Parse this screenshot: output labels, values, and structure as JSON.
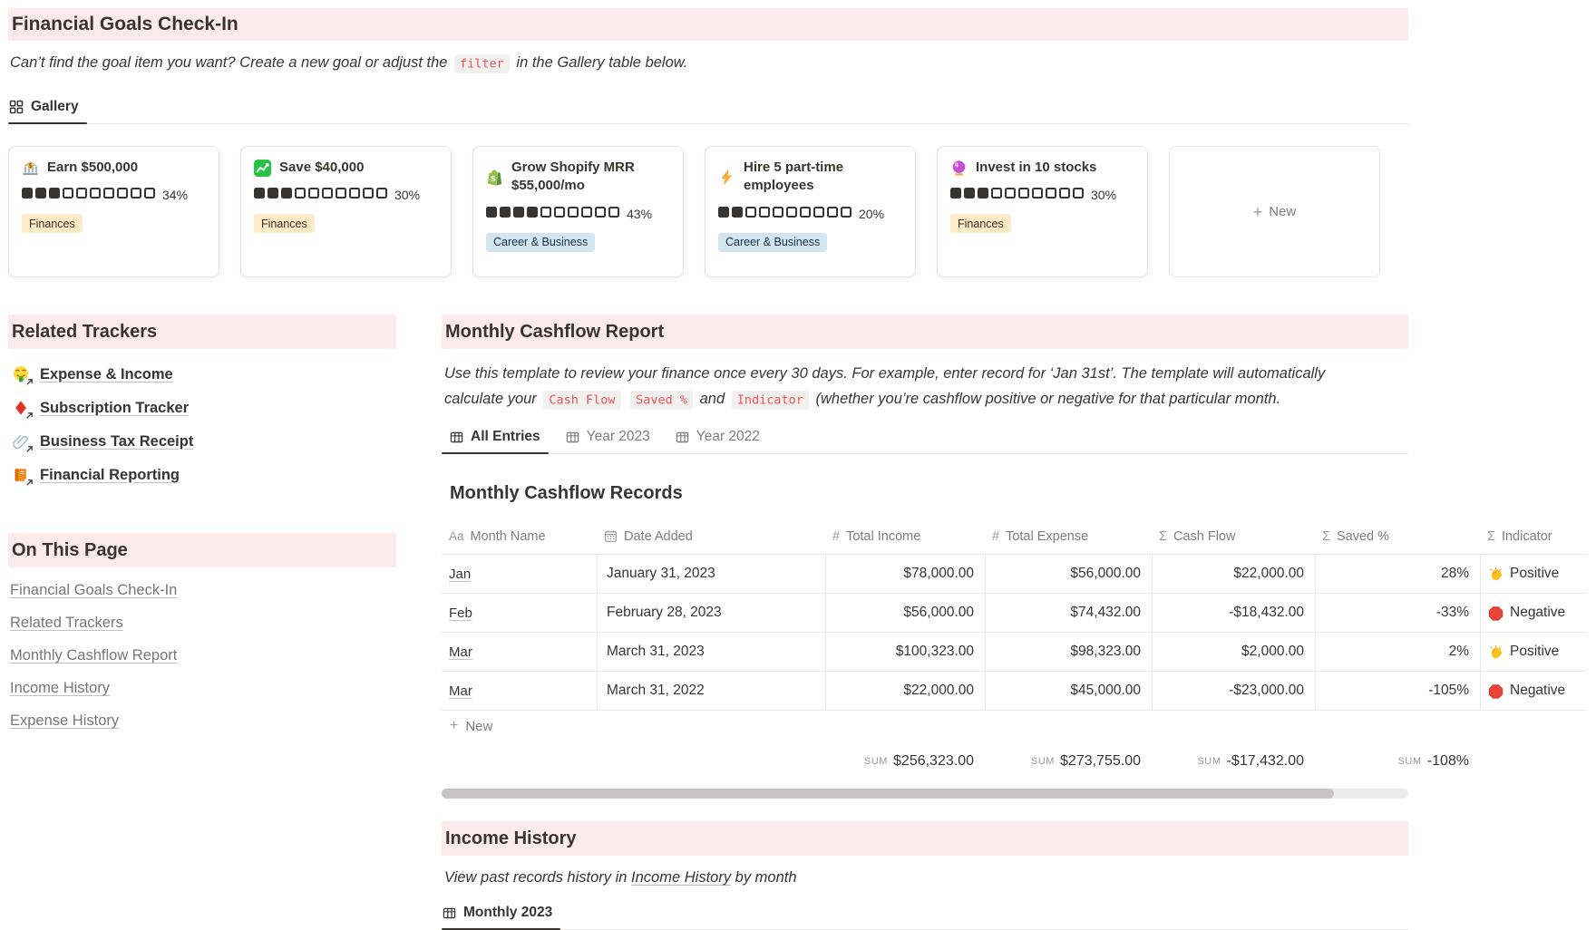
{
  "header": {
    "title": "Financial Goals Check-In",
    "note_before": "Can’t find the goal item you want? Create a new goal or adjust the ",
    "note_code": "filter",
    "note_after": " in the Gallery table below.",
    "gallery_tab": "Gallery",
    "new_card_label": "New"
  },
  "goal_cards": [
    {
      "icon": "bank",
      "title": "Earn $500,000",
      "progress_filled": 3,
      "progress_total": 10,
      "percent": "34%",
      "tag": "Finances",
      "tag_color": "yellow"
    },
    {
      "icon": "chart-up",
      "title": "Save $40,000",
      "progress_filled": 3,
      "progress_total": 10,
      "percent": "30%",
      "tag": "Finances",
      "tag_color": "yellow"
    },
    {
      "icon": "shopify",
      "title": "Grow Shopify MRR $55,000/mo",
      "progress_filled": 4,
      "progress_total": 10,
      "percent": "43%",
      "tag": "Career & Business",
      "tag_color": "blue"
    },
    {
      "icon": "lightning",
      "title": "Hire 5 part-time employees",
      "progress_filled": 2,
      "progress_total": 10,
      "percent": "20%",
      "tag": "Career & Business",
      "tag_color": "blue"
    },
    {
      "icon": "crystal-ball",
      "title": "Invest in 10 stocks",
      "progress_filled": 3,
      "progress_total": 10,
      "percent": "30%",
      "tag": "Finances",
      "tag_color": "yellow"
    }
  ],
  "related_trackers": {
    "title": "Related Trackers",
    "links": [
      {
        "icon": "money-face",
        "label": "Expense & Income"
      },
      {
        "icon": "diamond",
        "label": "Subscription Tracker"
      },
      {
        "icon": "paperclip",
        "label": "Business Tax Receipt"
      },
      {
        "icon": "orange-book",
        "label": "Financial Reporting"
      }
    ]
  },
  "on_this_page": {
    "title": "On This Page",
    "links": [
      "Financial Goals Check-In",
      "Related Trackers",
      "Monthly Cashflow Report",
      "Income History",
      "Expense History"
    ]
  },
  "report": {
    "title": "Monthly Cashflow Report",
    "description_line1": "Use this template to review your finance once every 30 days. For example, enter record for ‘Jan 31st’. The template will automatically",
    "description_line2_parts": [
      {
        "text": "calculate your "
      },
      {
        "code": "Cash Flow"
      },
      {
        "text": " "
      },
      {
        "code": "Saved %"
      },
      {
        "text": " and "
      },
      {
        "code": "Indicator"
      },
      {
        "text": " (whether you’re cashflow positive or negative for that particular month."
      }
    ],
    "tabs": [
      {
        "label": "All Entries",
        "active": true
      },
      {
        "label": "Year 2023",
        "active": false
      },
      {
        "label": "Year 2022",
        "active": false
      }
    ],
    "table": {
      "title": "Monthly Cashflow Records",
      "columns": [
        {
          "icon": "aa",
          "label": "Month Name"
        },
        {
          "icon": "calendar",
          "label": "Date Added"
        },
        {
          "icon": "hash",
          "label": "Total Income"
        },
        {
          "icon": "hash",
          "label": "Total Expense"
        },
        {
          "icon": "sigma",
          "label": "Cash Flow"
        },
        {
          "icon": "sigma",
          "label": "Saved %"
        },
        {
          "icon": "sigma",
          "label": "Indicator"
        }
      ],
      "rows": [
        {
          "month": "Jan",
          "date": "January 31, 2023",
          "income": "$78,000.00",
          "expense": "$56,000.00",
          "cash_flow": "$22,000.00",
          "saved": "28%",
          "indicator": "Positive",
          "indicator_icon": "clap"
        },
        {
          "month": "Feb",
          "date": "February 28, 2023",
          "income": "$56,000.00",
          "expense": "$74,432.00",
          "cash_flow": "-$18,432.00",
          "saved": "-33%",
          "indicator": "Negative",
          "indicator_icon": "stop"
        },
        {
          "month": "Mar",
          "date": "March 31, 2023",
          "income": "$100,323.00",
          "expense": "$98,323.00",
          "cash_flow": "$2,000.00",
          "saved": "2%",
          "indicator": "Positive",
          "indicator_icon": "clap"
        },
        {
          "month": "Mar",
          "date": "March 31, 2022",
          "income": "$22,000.00",
          "expense": "$45,000.00",
          "cash_flow": "-$23,000.00",
          "saved": "-105%",
          "indicator": "Negative",
          "indicator_icon": "stop"
        }
      ],
      "new_row_label": "New",
      "sum_label": "SUM",
      "sums": {
        "income": "$256,323.00",
        "expense": "$273,755.00",
        "cash_flow": "-$17,432.00",
        "saved": "-108%"
      }
    }
  },
  "income_history": {
    "title": "Income History",
    "note_before": "View past records history in ",
    "note_link": "Income History",
    "note_after": " by month",
    "tab": "Monthly 2023"
  },
  "colors": {
    "section_header_bg": "#fdebec",
    "inline_code_text": "#eb5757",
    "tag_yellow_bg": "#fdecc8",
    "tag_blue_bg": "#d3e5ef",
    "text": "#37352f",
    "muted_text": "#787774"
  }
}
